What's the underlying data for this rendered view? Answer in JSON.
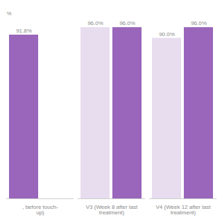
{
  "chart_data": {
    "type": "bar",
    "categories": [
      ", before touch-\nup)",
      "V3 (Week 8 after last\ntreatment)",
      "V4 (Week 12 after last\ntreatment)"
    ],
    "series": [
      {
        "values": [
          91.8,
          96.0,
          90.0
        ],
        "value_labels": [
          "91.8%",
          "96.0%",
          "90.0%"
        ],
        "colors": [
          "#9966BB",
          "#E8DDEF",
          "#E8DDEF"
        ]
      },
      {
        "values": [
          null,
          96.0,
          96.0
        ],
        "value_labels": [
          null,
          "96.0%",
          "96.0%"
        ],
        "color": "#9966BB"
      }
    ],
    "ylim": [
      0,
      105
    ],
    "data_labels": true,
    "tick_labels": "x",
    "grid": false,
    "annotations": [
      {
        "text": "%"
      }
    ]
  }
}
